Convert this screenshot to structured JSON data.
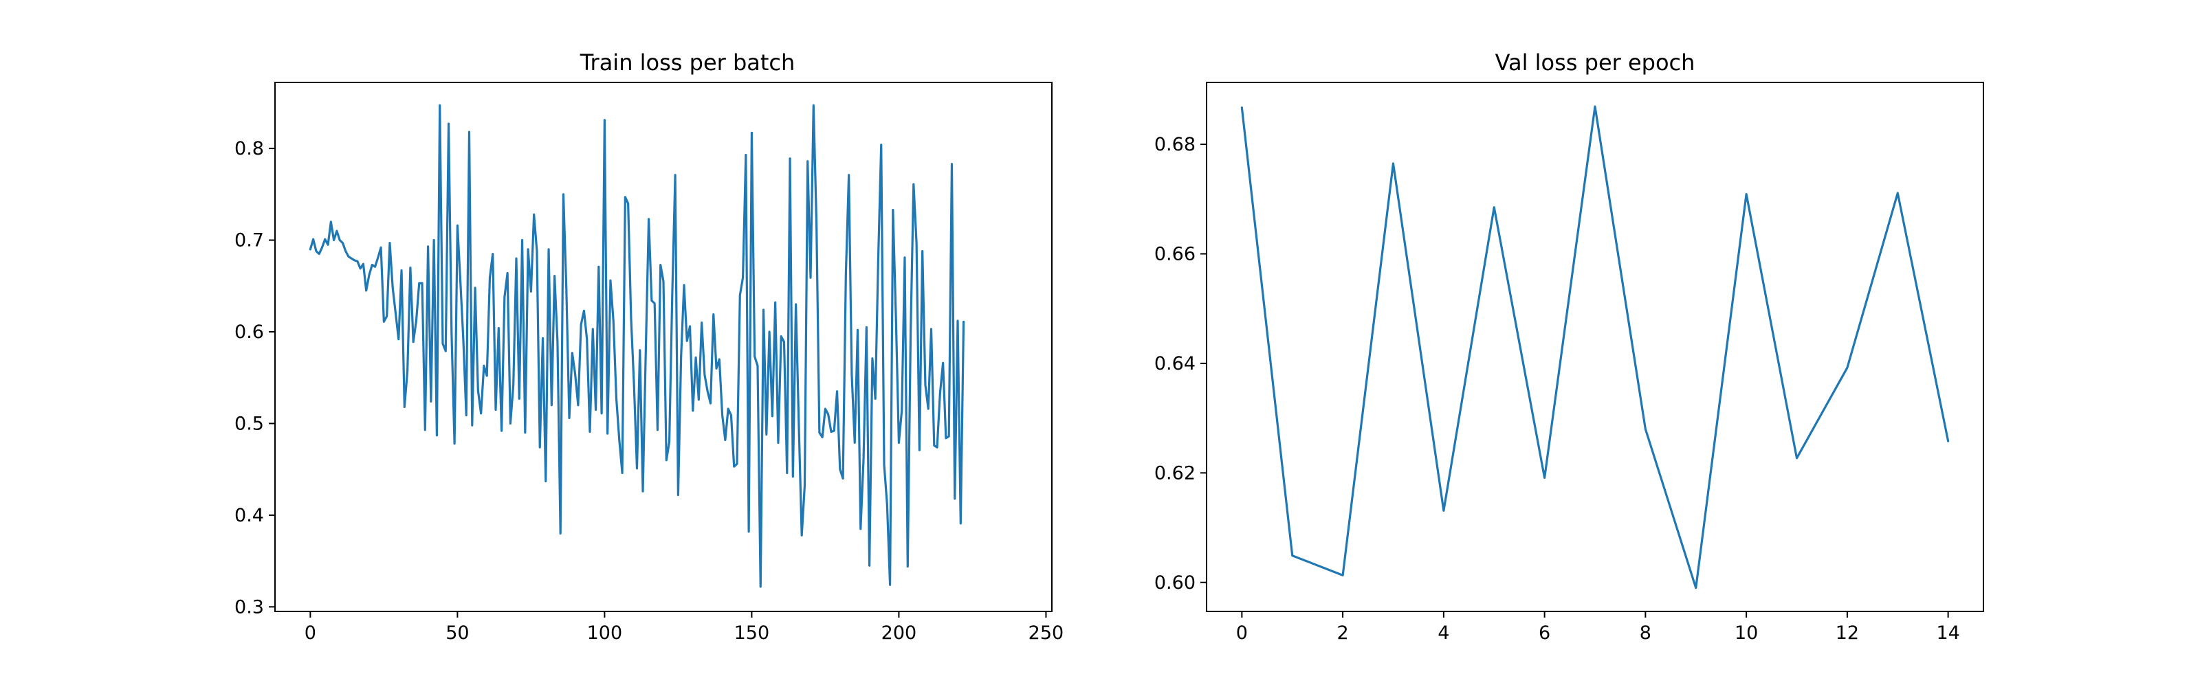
{
  "chart_data": [
    {
      "type": "line",
      "title": "Train loss per batch",
      "xlabel": "",
      "ylabel": "",
      "xlim": [
        -12,
        252
      ],
      "ylim": [
        0.295,
        0.872
      ],
      "xticks": [
        0,
        50,
        100,
        150,
        200,
        250
      ],
      "yticks": [
        0.3,
        0.4,
        0.5,
        0.6,
        0.7,
        0.8
      ],
      "xtick_labels": [
        "0",
        "50",
        "100",
        "150",
        "200",
        "250"
      ],
      "ytick_labels": [
        "0.3",
        "0.4",
        "0.5",
        "0.6",
        "0.7",
        "0.8"
      ],
      "grid": false,
      "color": "#1f77b4",
      "series": [
        {
          "values": [
            0.69,
            0.701,
            0.688,
            0.685,
            0.692,
            0.701,
            0.695,
            0.72,
            0.7,
            0.71,
            0.7,
            0.697,
            0.688,
            0.682,
            0.68,
            0.678,
            0.677,
            0.669,
            0.674,
            0.645,
            0.662,
            0.673,
            0.671,
            0.681,
            0.692,
            0.611,
            0.617,
            0.697,
            0.648,
            0.62,
            0.592,
            0.667,
            0.518,
            0.557,
            0.67,
            0.589,
            0.612,
            0.653,
            0.653,
            0.493,
            0.693,
            0.524,
            0.7,
            0.487,
            0.847,
            0.587,
            0.579,
            0.827,
            0.599,
            0.478,
            0.716,
            0.655,
            0.591,
            0.509,
            0.818,
            0.498,
            0.648,
            0.536,
            0.511,
            0.563,
            0.552,
            0.659,
            0.685,
            0.515,
            0.604,
            0.492,
            0.638,
            0.664,
            0.5,
            0.542,
            0.68,
            0.527,
            0.7,
            0.49,
            0.69,
            0.644,
            0.728,
            0.688,
            0.474,
            0.593,
            0.437,
            0.69,
            0.52,
            0.661,
            0.589,
            0.38,
            0.75,
            0.648,
            0.506,
            0.577,
            0.554,
            0.52,
            0.608,
            0.623,
            0.592,
            0.491,
            0.603,
            0.515,
            0.671,
            0.511,
            0.831,
            0.489,
            0.656,
            0.612,
            0.527,
            0.482,
            0.446,
            0.747,
            0.74,
            0.615,
            0.542,
            0.451,
            0.58,
            0.426,
            0.579,
            0.723,
            0.634,
            0.631,
            0.493,
            0.673,
            0.655,
            0.46,
            0.48,
            0.641,
            0.771,
            0.422,
            0.573,
            0.651,
            0.59,
            0.606,
            0.514,
            0.572,
            0.526,
            0.61,
            0.553,
            0.535,
            0.522,
            0.619,
            0.56,
            0.57,
            0.509,
            0.482,
            0.516,
            0.509,
            0.453,
            0.456,
            0.64,
            0.659,
            0.793,
            0.382,
            0.817,
            0.573,
            0.563,
            0.322,
            0.624,
            0.488,
            0.6,
            0.508,
            0.632,
            0.479,
            0.595,
            0.589,
            0.446,
            0.789,
            0.442,
            0.63,
            0.5,
            0.378,
            0.432,
            0.786,
            0.659,
            0.847,
            0.72,
            0.49,
            0.485,
            0.516,
            0.51,
            0.491,
            0.492,
            0.535,
            0.45,
            0.44,
            0.664,
            0.771,
            0.553,
            0.479,
            0.602,
            0.385,
            0.461,
            0.605,
            0.345,
            0.571,
            0.527,
            0.68,
            0.804,
            0.455,
            0.412,
            0.324,
            0.733,
            0.617,
            0.479,
            0.514,
            0.681,
            0.344,
            0.598,
            0.761,
            0.697,
            0.471,
            0.688,
            0.542,
            0.516,
            0.603,
            0.476,
            0.474,
            0.533,
            0.566,
            0.484,
            0.486,
            0.783,
            0.418,
            0.612,
            0.391,
            0.611
          ]
        }
      ]
    },
    {
      "type": "line",
      "title": "Val loss per epoch",
      "xlabel": "",
      "ylabel": "",
      "xlim": [
        -0.7,
        14.7
      ],
      "ylim": [
        0.5947,
        0.6913
      ],
      "xticks": [
        0,
        2,
        4,
        6,
        8,
        10,
        12,
        14
      ],
      "yticks": [
        0.6,
        0.62,
        0.64,
        0.66,
        0.68
      ],
      "xtick_labels": [
        "0",
        "2",
        "4",
        "6",
        "8",
        "10",
        "12",
        "14"
      ],
      "ytick_labels": [
        "0.60",
        "0.62",
        "0.64",
        "0.66",
        "0.68"
      ],
      "grid": false,
      "color": "#1f77b4",
      "series": [
        {
          "x": [
            0,
            1,
            2,
            3,
            4,
            5,
            6,
            7,
            8,
            9,
            10,
            11,
            12,
            13,
            14
          ],
          "values": [
            0.6867,
            0.6049,
            0.6013,
            0.6765,
            0.6131,
            0.6685,
            0.6191,
            0.6869,
            0.628,
            0.599,
            0.6709,
            0.6227,
            0.6392,
            0.6711,
            0.6258
          ]
        }
      ]
    }
  ]
}
